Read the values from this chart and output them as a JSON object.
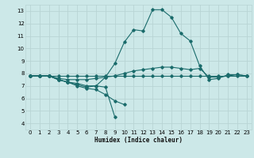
{
  "xlabel": "Humidex (Indice chaleur)",
  "xlim": [
    -0.5,
    23.5
  ],
  "ylim": [
    3.5,
    13.5
  ],
  "xticks": [
    0,
    1,
    2,
    3,
    4,
    5,
    6,
    7,
    8,
    9,
    10,
    11,
    12,
    13,
    14,
    15,
    16,
    17,
    18,
    19,
    20,
    21,
    22,
    23
  ],
  "yticks": [
    4,
    5,
    6,
    7,
    8,
    9,
    10,
    11,
    12,
    13
  ],
  "background_color": "#cce8e8",
  "grid_color": "#b8d4d4",
  "line_color": "#1a6b6b",
  "lines": [
    {
      "x": [
        0,
        1,
        2,
        3,
        4,
        5,
        6,
        7,
        8,
        9,
        10,
        11,
        12,
        13,
        14,
        15,
        16,
        17,
        18,
        19,
        20,
        21,
        22,
        23
      ],
      "y": [
        7.8,
        7.8,
        7.8,
        7.5,
        7.3,
        7.2,
        7.0,
        7.0,
        7.7,
        8.8,
        10.5,
        11.5,
        11.4,
        13.1,
        13.1,
        12.5,
        11.2,
        10.6,
        8.6,
        7.5,
        7.6,
        7.9,
        7.9,
        7.8
      ]
    },
    {
      "x": [
        0,
        1,
        2,
        3,
        4,
        5,
        6,
        7,
        8,
        9,
        10,
        11,
        12,
        13,
        14,
        15,
        16,
        17,
        18,
        19,
        20,
        21,
        22,
        23
      ],
      "y": [
        7.8,
        7.8,
        7.8,
        7.5,
        7.3,
        7.0,
        6.8,
        6.7,
        6.3,
        5.8,
        5.5,
        null,
        null,
        null,
        null,
        null,
        null,
        null,
        null,
        null,
        null,
        null,
        null,
        null
      ]
    },
    {
      "x": [
        0,
        1,
        2,
        3,
        4,
        5,
        6,
        7,
        8,
        9,
        10,
        11,
        12,
        13,
        14,
        15,
        16,
        17,
        18,
        19,
        20,
        21,
        22,
        23
      ],
      "y": [
        7.8,
        7.8,
        7.8,
        7.5,
        7.3,
        7.1,
        6.9,
        7.0,
        6.9,
        4.5,
        null,
        null,
        null,
        null,
        null,
        null,
        null,
        null,
        null,
        null,
        null,
        null,
        null,
        null
      ]
    },
    {
      "x": [
        0,
        1,
        2,
        3,
        4,
        5,
        6,
        7,
        8,
        9,
        10,
        11,
        12,
        13,
        14,
        15,
        16,
        17,
        18,
        19,
        20,
        21,
        22,
        23
      ],
      "y": [
        7.8,
        7.8,
        7.8,
        7.6,
        7.5,
        7.5,
        7.5,
        7.6,
        7.7,
        7.8,
        8.0,
        8.2,
        8.3,
        8.4,
        8.5,
        8.5,
        8.4,
        8.3,
        8.4,
        7.7,
        7.7,
        7.8,
        7.9,
        7.8
      ]
    },
    {
      "x": [
        0,
        1,
        2,
        3,
        4,
        5,
        6,
        7,
        8,
        9,
        10,
        11,
        12,
        13,
        14,
        15,
        16,
        17,
        18,
        19,
        20,
        21,
        22,
        23
      ],
      "y": [
        7.8,
        7.8,
        7.8,
        7.8,
        7.8,
        7.8,
        7.8,
        7.8,
        7.8,
        7.8,
        7.8,
        7.8,
        7.8,
        7.8,
        7.8,
        7.8,
        7.8,
        7.8,
        7.8,
        7.8,
        7.8,
        7.8,
        7.8,
        7.8
      ]
    }
  ]
}
